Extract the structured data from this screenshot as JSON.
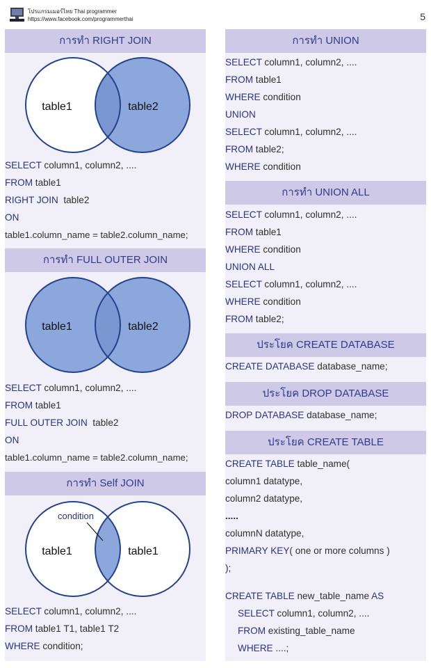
{
  "header": {
    "brand_line1": "โปรแกรมเมอร์ไทย Thai programmer",
    "brand_line2": "https://www.facebook.com/programmerthai",
    "page_number": "5"
  },
  "colors": {
    "band_bg": "#cdc9e6",
    "band_text": "#333a8a",
    "panel_bg": "#f1f0f8",
    "keyword": "#2b3284",
    "venn_fill": "#8ba7dc",
    "venn_stroke": "#24418c"
  },
  "left": {
    "right_join": {
      "title": "การทำ RIGHT JOIN",
      "venn_left": "table1",
      "venn_right": "table2",
      "l1_kw": "SELECT",
      "l1_tx": " column1, column2, ....",
      "l2_kw": "FROM",
      "l2_tx": " table1",
      "l3_kw": "RIGHT JOIN",
      "l3_tx": "  table2",
      "l4_kw": "ON",
      "l5_tx": "table1.column_name = table2.column_name;"
    },
    "full_outer_join": {
      "title": "การทำ FULL OUTER JOIN",
      "venn_left": "table1",
      "venn_right": "table2",
      "l1_kw": "SELECT",
      "l1_tx": " column1, column2, ....",
      "l2_kw": "FROM",
      "l2_tx": " table1",
      "l3_kw": "FULL OUTER JOIN",
      "l3_tx": "  table2",
      "l4_kw": "ON",
      "l5_tx": "table1.column_name = table2.column_name;"
    },
    "self_join": {
      "title": "การทำ Self JOIN",
      "venn_condition": "condition",
      "venn_left": "table1",
      "venn_right": "table1",
      "l1_kw": "SELECT",
      "l1_tx": " column1, column2, ....",
      "l2_kw": "FROM",
      "l2_tx": " table1 T1, table1 T2",
      "l3_kw": "WHERE",
      "l3_tx": " condition;"
    }
  },
  "right": {
    "union": {
      "title": "การทำ UNION",
      "l1_kw": "SELECT",
      "l1_tx": " column1, column2, ....",
      "l2_kw": "FROM",
      "l2_tx": " table1",
      "l3_kw": "WHERE",
      "l3_tx": " condition",
      "l4_kw": "UNION",
      "l5_kw": "SELECT",
      "l5_tx": " column1, column2, ....",
      "l6_kw": "FROM",
      "l6_tx": " table2;",
      "l7_kw": "WHERE",
      "l7_tx": " condition"
    },
    "union_all": {
      "title": "การทำ UNION ALL",
      "l1_kw": "SELECT",
      "l1_tx": " column1, column2, ....",
      "l2_kw": "FROM",
      "l2_tx": " table1",
      "l3_kw": "WHERE",
      "l3_tx": " condition",
      "l4_kw": "UNION ALL",
      "l5_kw": "SELECT",
      "l5_tx": " column1, column2, ....",
      "l6_kw": "WHERE",
      "l6_tx": " condition",
      "l7_kw": "FROM",
      "l7_tx": " table2;"
    },
    "create_database": {
      "title": "ประโยค CREATE DATABASE",
      "l1_kw": "CREATE DATABASE",
      "l1_tx": " database_name;"
    },
    "drop_database": {
      "title": "ประโยค DROP DATABASE",
      "l1_kw": "DROP DATABASE",
      "l1_tx": " database_name;"
    },
    "create_table": {
      "title": "ประโยค CREATE TABLE",
      "l1_kw": "CREATE TABLE",
      "l1_tx": " table_name(",
      "l2_tx": "column1 datatype,",
      "l3_tx": "column2 datatype,",
      "l4_tx": ".....",
      "l5_tx": "columnN datatype,",
      "l6_kw": "PRIMARY KEY",
      "l6_tx": "( one or more columns )",
      "l7_tx": ");",
      "l8_kw": "CREATE TABLE",
      "l8_tx": " new_table_name ",
      "l8_kw2": "AS",
      "l9_kw": "SELECT",
      "l9_tx": " column1, column2, ....",
      "l10_kw": "FROM",
      "l10_tx": " existing_table_name",
      "l11_kw": "WHERE",
      "l11_tx": " ....;"
    }
  }
}
